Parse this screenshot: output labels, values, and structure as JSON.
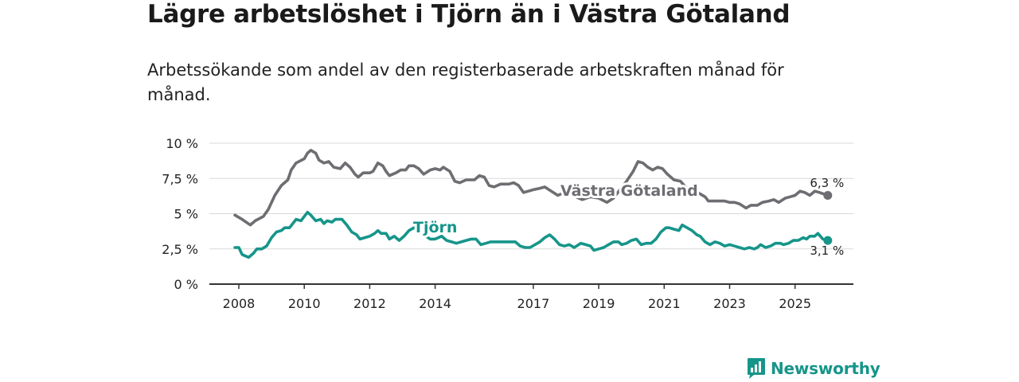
{
  "header": {
    "title": "Lägre arbetslöshet i Tjörn än i Västra Götaland",
    "subtitle": "Arbetssökande som andel av den registerbaserade arbetskraften månad för månad."
  },
  "brand": {
    "name": "Newsworthy",
    "color": "#16958a"
  },
  "chart_data": {
    "type": "line",
    "title": "Lägre arbetslöshet i Tjörn än i Västra Götaland",
    "subtitle": "Arbetssökande som andel av den registerbaserade arbetskraften månad för månad.",
    "xlabel": "",
    "ylabel": "",
    "xlim": [
      2007.88,
      2026.0
    ],
    "ylim": [
      0,
      10
    ],
    "grid": true,
    "x_ticks": [
      {
        "value": 2008,
        "label": "2008"
      },
      {
        "value": 2010,
        "label": "2010"
      },
      {
        "value": 2012,
        "label": "2012"
      },
      {
        "value": 2014,
        "label": "2014"
      },
      {
        "value": 2017,
        "label": "2017"
      },
      {
        "value": 2019,
        "label": "2019"
      },
      {
        "value": 2021,
        "label": "2021"
      },
      {
        "value": 2023,
        "label": "2023"
      },
      {
        "value": 2025,
        "label": "2025"
      }
    ],
    "y_ticks": [
      {
        "value": 0,
        "label": "0 %"
      },
      {
        "value": 2.5,
        "label": "2,5 %"
      },
      {
        "value": 5,
        "label": "5 %"
      },
      {
        "value": 7.5,
        "label": "7,5 %"
      },
      {
        "value": 10,
        "label": "10 %"
      }
    ],
    "series": [
      {
        "name": "Västra Götaland",
        "color": "#6d6d72",
        "end_label": "6,3 %",
        "points": [
          [
            2007.88,
            4.9
          ],
          [
            2008.1,
            4.6
          ],
          [
            2008.35,
            4.2
          ],
          [
            2008.5,
            4.5
          ],
          [
            2008.75,
            4.8
          ],
          [
            2008.9,
            5.3
          ],
          [
            2009.1,
            6.3
          ],
          [
            2009.3,
            7.0
          ],
          [
            2009.5,
            7.4
          ],
          [
            2009.6,
            8.1
          ],
          [
            2009.75,
            8.6
          ],
          [
            2010.0,
            8.9
          ],
          [
            2010.1,
            9.3
          ],
          [
            2010.2,
            9.5
          ],
          [
            2010.35,
            9.3
          ],
          [
            2010.45,
            8.8
          ],
          [
            2010.6,
            8.6
          ],
          [
            2010.75,
            8.7
          ],
          [
            2010.9,
            8.3
          ],
          [
            2011.1,
            8.2
          ],
          [
            2011.25,
            8.6
          ],
          [
            2011.4,
            8.3
          ],
          [
            2011.55,
            7.8
          ],
          [
            2011.65,
            7.6
          ],
          [
            2011.8,
            7.9
          ],
          [
            2012.0,
            7.9
          ],
          [
            2012.1,
            8.0
          ],
          [
            2012.25,
            8.6
          ],
          [
            2012.4,
            8.4
          ],
          [
            2012.5,
            8.0
          ],
          [
            2012.6,
            7.7
          ],
          [
            2012.8,
            7.9
          ],
          [
            2012.95,
            8.1
          ],
          [
            2013.1,
            8.1
          ],
          [
            2013.2,
            8.4
          ],
          [
            2013.35,
            8.4
          ],
          [
            2013.5,
            8.2
          ],
          [
            2013.65,
            7.8
          ],
          [
            2013.85,
            8.1
          ],
          [
            2014.0,
            8.2
          ],
          [
            2014.15,
            8.1
          ],
          [
            2014.25,
            8.3
          ],
          [
            2014.45,
            8.0
          ],
          [
            2014.6,
            7.3
          ],
          [
            2014.75,
            7.2
          ],
          [
            2014.95,
            7.4
          ],
          [
            2015.2,
            7.4
          ],
          [
            2015.35,
            7.7
          ],
          [
            2015.5,
            7.6
          ],
          [
            2015.65,
            7.0
          ],
          [
            2015.8,
            6.9
          ],
          [
            2016.0,
            7.1
          ],
          [
            2016.25,
            7.1
          ],
          [
            2016.4,
            7.2
          ],
          [
            2016.55,
            7.0
          ],
          [
            2016.7,
            6.5
          ],
          [
            2016.85,
            6.6
          ],
          [
            2017.0,
            6.7
          ],
          [
            2017.2,
            6.8
          ],
          [
            2017.35,
            6.9
          ],
          [
            2017.55,
            6.6
          ],
          [
            2017.75,
            6.3
          ],
          [
            2017.95,
            6.5
          ],
          [
            2018.1,
            6.4
          ],
          [
            2018.3,
            6.2
          ],
          [
            2018.5,
            6.0
          ],
          [
            2018.75,
            6.2
          ],
          [
            2019.0,
            6.1
          ],
          [
            2019.25,
            5.8
          ],
          [
            2019.45,
            6.1
          ],
          [
            2019.65,
            6.7
          ],
          [
            2019.85,
            7.3
          ],
          [
            2020.05,
            8.0
          ],
          [
            2020.2,
            8.7
          ],
          [
            2020.35,
            8.6
          ],
          [
            2020.5,
            8.3
          ],
          [
            2020.65,
            8.1
          ],
          [
            2020.8,
            8.3
          ],
          [
            2020.95,
            8.2
          ],
          [
            2021.1,
            7.8
          ],
          [
            2021.3,
            7.4
          ],
          [
            2021.5,
            7.3
          ],
          [
            2021.65,
            6.9
          ],
          [
            2021.8,
            6.7
          ],
          [
            2021.95,
            6.6
          ],
          [
            2022.1,
            6.4
          ],
          [
            2022.25,
            6.2
          ],
          [
            2022.35,
            5.9
          ],
          [
            2022.6,
            5.9
          ],
          [
            2022.85,
            5.9
          ],
          [
            2023.0,
            5.8
          ],
          [
            2023.15,
            5.8
          ],
          [
            2023.3,
            5.7
          ],
          [
            2023.5,
            5.4
          ],
          [
            2023.65,
            5.6
          ],
          [
            2023.85,
            5.6
          ],
          [
            2024.0,
            5.8
          ],
          [
            2024.2,
            5.9
          ],
          [
            2024.35,
            6.0
          ],
          [
            2024.5,
            5.8
          ],
          [
            2024.7,
            6.1
          ],
          [
            2024.85,
            6.2
          ],
          [
            2025.0,
            6.3
          ],
          [
            2025.15,
            6.6
          ],
          [
            2025.3,
            6.5
          ],
          [
            2025.45,
            6.3
          ],
          [
            2025.6,
            6.6
          ],
          [
            2025.75,
            6.5
          ],
          [
            2026.0,
            6.3
          ]
        ]
      },
      {
        "name": "Tjörn",
        "color": "#16958a",
        "end_label": "3,1 %",
        "points": [
          [
            2007.88,
            2.6
          ],
          [
            2008.0,
            2.6
          ],
          [
            2008.1,
            2.1
          ],
          [
            2008.3,
            1.9
          ],
          [
            2008.45,
            2.2
          ],
          [
            2008.55,
            2.5
          ],
          [
            2008.7,
            2.5
          ],
          [
            2008.85,
            2.7
          ],
          [
            2009.0,
            3.3
          ],
          [
            2009.15,
            3.7
          ],
          [
            2009.3,
            3.8
          ],
          [
            2009.4,
            4.0
          ],
          [
            2009.55,
            4.0
          ],
          [
            2009.65,
            4.3
          ],
          [
            2009.75,
            4.6
          ],
          [
            2009.9,
            4.5
          ],
          [
            2010.0,
            4.8
          ],
          [
            2010.1,
            5.1
          ],
          [
            2010.2,
            4.9
          ],
          [
            2010.35,
            4.5
          ],
          [
            2010.5,
            4.6
          ],
          [
            2010.6,
            4.3
          ],
          [
            2010.7,
            4.5
          ],
          [
            2010.85,
            4.4
          ],
          [
            2010.95,
            4.6
          ],
          [
            2011.15,
            4.6
          ],
          [
            2011.3,
            4.2
          ],
          [
            2011.45,
            3.7
          ],
          [
            2011.6,
            3.5
          ],
          [
            2011.7,
            3.2
          ],
          [
            2011.85,
            3.3
          ],
          [
            2012.0,
            3.4
          ],
          [
            2012.15,
            3.6
          ],
          [
            2012.25,
            3.8
          ],
          [
            2012.35,
            3.6
          ],
          [
            2012.5,
            3.6
          ],
          [
            2012.6,
            3.2
          ],
          [
            2012.75,
            3.4
          ],
          [
            2012.9,
            3.1
          ],
          [
            2013.05,
            3.4
          ],
          [
            2013.2,
            3.8
          ],
          [
            2013.35,
            4.0
          ],
          [
            2013.5,
            3.8
          ],
          [
            2013.65,
            3.5
          ],
          [
            2013.85,
            3.2
          ],
          [
            2014.0,
            3.2
          ],
          [
            2014.2,
            3.4
          ],
          [
            2014.35,
            3.1
          ],
          [
            2014.5,
            3.0
          ],
          [
            2014.65,
            2.9
          ],
          [
            2014.8,
            3.0
          ],
          [
            2014.95,
            3.1
          ],
          [
            2015.1,
            3.2
          ],
          [
            2015.25,
            3.2
          ],
          [
            2015.4,
            2.8
          ],
          [
            2015.55,
            2.9
          ],
          [
            2015.7,
            3.0
          ],
          [
            2015.9,
            3.0
          ],
          [
            2016.1,
            3.0
          ],
          [
            2016.3,
            3.0
          ],
          [
            2016.45,
            3.0
          ],
          [
            2016.6,
            2.7
          ],
          [
            2016.75,
            2.6
          ],
          [
            2016.9,
            2.6
          ],
          [
            2017.05,
            2.8
          ],
          [
            2017.2,
            3.0
          ],
          [
            2017.35,
            3.3
          ],
          [
            2017.5,
            3.5
          ],
          [
            2017.65,
            3.2
          ],
          [
            2017.8,
            2.8
          ],
          [
            2017.95,
            2.7
          ],
          [
            2018.1,
            2.8
          ],
          [
            2018.25,
            2.6
          ],
          [
            2018.45,
            2.9
          ],
          [
            2018.6,
            2.8
          ],
          [
            2018.75,
            2.7
          ],
          [
            2018.85,
            2.4
          ],
          [
            2019.0,
            2.5
          ],
          [
            2019.15,
            2.6
          ],
          [
            2019.3,
            2.8
          ],
          [
            2019.45,
            3.0
          ],
          [
            2019.6,
            3.0
          ],
          [
            2019.7,
            2.8
          ],
          [
            2019.85,
            2.9
          ],
          [
            2020.0,
            3.1
          ],
          [
            2020.15,
            3.2
          ],
          [
            2020.3,
            2.8
          ],
          [
            2020.45,
            2.9
          ],
          [
            2020.6,
            2.9
          ],
          [
            2020.75,
            3.2
          ],
          [
            2020.9,
            3.7
          ],
          [
            2021.05,
            4.0
          ],
          [
            2021.15,
            4.0
          ],
          [
            2021.3,
            3.9
          ],
          [
            2021.45,
            3.8
          ],
          [
            2021.55,
            4.2
          ],
          [
            2021.7,
            4.0
          ],
          [
            2021.85,
            3.8
          ],
          [
            2022.0,
            3.5
          ],
          [
            2022.1,
            3.4
          ],
          [
            2022.25,
            3.0
          ],
          [
            2022.4,
            2.8
          ],
          [
            2022.55,
            3.0
          ],
          [
            2022.7,
            2.9
          ],
          [
            2022.85,
            2.7
          ],
          [
            2023.0,
            2.8
          ],
          [
            2023.15,
            2.7
          ],
          [
            2023.3,
            2.6
          ],
          [
            2023.45,
            2.5
          ],
          [
            2023.6,
            2.6
          ],
          [
            2023.75,
            2.5
          ],
          [
            2023.85,
            2.6
          ],
          [
            2023.95,
            2.8
          ],
          [
            2024.1,
            2.6
          ],
          [
            2024.25,
            2.7
          ],
          [
            2024.4,
            2.9
          ],
          [
            2024.55,
            2.9
          ],
          [
            2024.65,
            2.8
          ],
          [
            2024.8,
            2.9
          ],
          [
            2024.95,
            3.1
          ],
          [
            2025.1,
            3.1
          ],
          [
            2025.25,
            3.3
          ],
          [
            2025.35,
            3.2
          ],
          [
            2025.45,
            3.4
          ],
          [
            2025.6,
            3.4
          ],
          [
            2025.7,
            3.6
          ],
          [
            2025.85,
            3.2
          ],
          [
            2026.0,
            3.1
          ]
        ]
      }
    ]
  }
}
